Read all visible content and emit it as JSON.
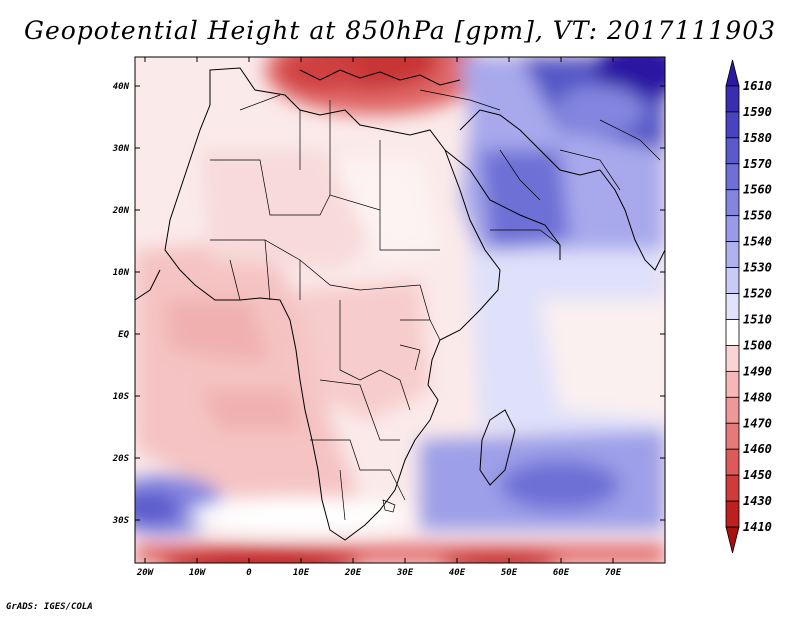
{
  "title": "Geopotential Height at 850hPa [gpm], VT: 2017111903",
  "footer": "GrADS: IGES/COLA",
  "map": {
    "lon_range": [
      -23,
      80
    ],
    "lat_range": [
      -36,
      45
    ],
    "x_ticks": [
      "20W",
      "10W",
      "0",
      "10E",
      "20E",
      "30E",
      "40E",
      "50E",
      "60E",
      "70E"
    ],
    "y_ticks": [
      "40N",
      "30N",
      "20N",
      "10N",
      "EQ",
      "10S",
      "20S",
      "30S"
    ]
  },
  "colorbar": {
    "levels": [
      "1610",
      "1590",
      "1580",
      "1570",
      "1560",
      "1550",
      "1540",
      "1530",
      "1520",
      "1510",
      "1500",
      "1490",
      "1480",
      "1470",
      "1460",
      "1450",
      "1430",
      "1410"
    ],
    "colors": [
      "#2b19a3",
      "#3a2eb0",
      "#4a43c0",
      "#5b5acc",
      "#6e70d6",
      "#8385df",
      "#989be8",
      "#b0b2ef",
      "#c9caf5",
      "#e2e3fa",
      "#ffffff",
      "#fad4d4",
      "#f5b7b7",
      "#ee9999",
      "#e67a7a",
      "#dc5a5a",
      "#cf3a3a",
      "#be2020",
      "#a80f0f"
    ]
  }
}
